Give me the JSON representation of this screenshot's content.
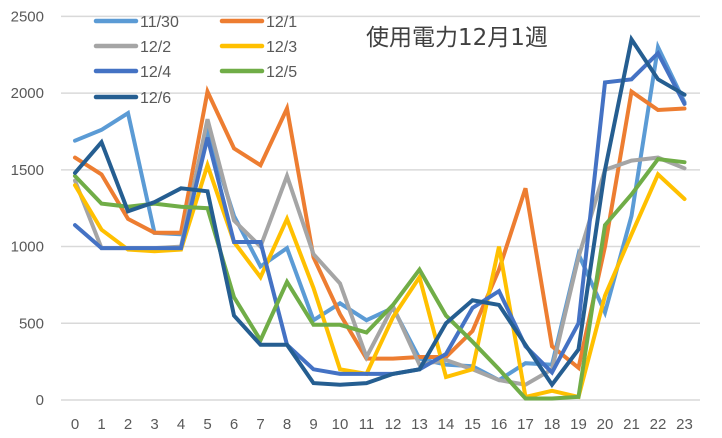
{
  "chart_data": {
    "type": "line",
    "title": "使用電力12月1週",
    "xlabel": "",
    "ylabel": "",
    "ylim": [
      0,
      2500
    ],
    "yticks": [
      0,
      500,
      1000,
      1500,
      2000,
      2500
    ],
    "grid": true,
    "legend_position": "top-left (inside)",
    "x": [
      0,
      1,
      2,
      3,
      4,
      5,
      6,
      7,
      8,
      9,
      10,
      11,
      12,
      13,
      14,
      15,
      16,
      17,
      18,
      19,
      20,
      21,
      22,
      23
    ],
    "series": [
      {
        "name": "11/30",
        "color": "#5B9BD5",
        "values": [
          1690,
          1760,
          1870,
          1090,
          1080,
          1740,
          1200,
          870,
          990,
          520,
          630,
          520,
          600,
          270,
          230,
          220,
          130,
          240,
          230,
          950,
          570,
          1200,
          2300,
          1940
        ]
      },
      {
        "name": "12/1",
        "color": "#ED7D31",
        "values": [
          1580,
          1470,
          1180,
          1090,
          1090,
          2010,
          1640,
          1530,
          1900,
          930,
          560,
          270,
          270,
          280,
          280,
          450,
          850,
          1380,
          350,
          210,
          1000,
          2010,
          1890,
          1900
        ]
      },
      {
        "name": "12/2",
        "color": "#A5A5A5",
        "values": [
          1430,
          990,
          990,
          990,
          1000,
          1830,
          1170,
          1000,
          1460,
          950,
          760,
          280,
          610,
          230,
          260,
          200,
          130,
          100,
          200,
          930,
          1500,
          1560,
          1580,
          1510
        ]
      },
      {
        "name": "12/3",
        "color": "#FFC000",
        "values": [
          1400,
          1110,
          980,
          970,
          980,
          1530,
          1030,
          800,
          1180,
          730,
          200,
          170,
          540,
          800,
          150,
          200,
          1000,
          20,
          60,
          20,
          680,
          1080,
          1470,
          1310
        ]
      },
      {
        "name": "12/4",
        "color": "#4472C4",
        "values": [
          1140,
          990,
          990,
          990,
          990,
          1710,
          1030,
          1030,
          360,
          200,
          170,
          170,
          170,
          200,
          300,
          600,
          710,
          350,
          180,
          500,
          2070,
          2090,
          2260,
          1930
        ]
      },
      {
        "name": "12/5",
        "color": "#70AD47",
        "values": [
          1460,
          1280,
          1260,
          1280,
          1260,
          1250,
          670,
          390,
          770,
          490,
          490,
          440,
          620,
          850,
          550,
          380,
          200,
          10,
          10,
          20,
          1140,
          1340,
          1570,
          1550
        ]
      },
      {
        "name": "12/6",
        "color": "#255E91",
        "values": [
          1480,
          1680,
          1230,
          1290,
          1380,
          1360,
          550,
          360,
          360,
          110,
          100,
          110,
          170,
          200,
          500,
          650,
          620,
          360,
          100,
          330,
          1500,
          2350,
          2090,
          1990
        ]
      }
    ]
  },
  "gridline_color": "#D9D9D9",
  "tick_color": "#595959"
}
